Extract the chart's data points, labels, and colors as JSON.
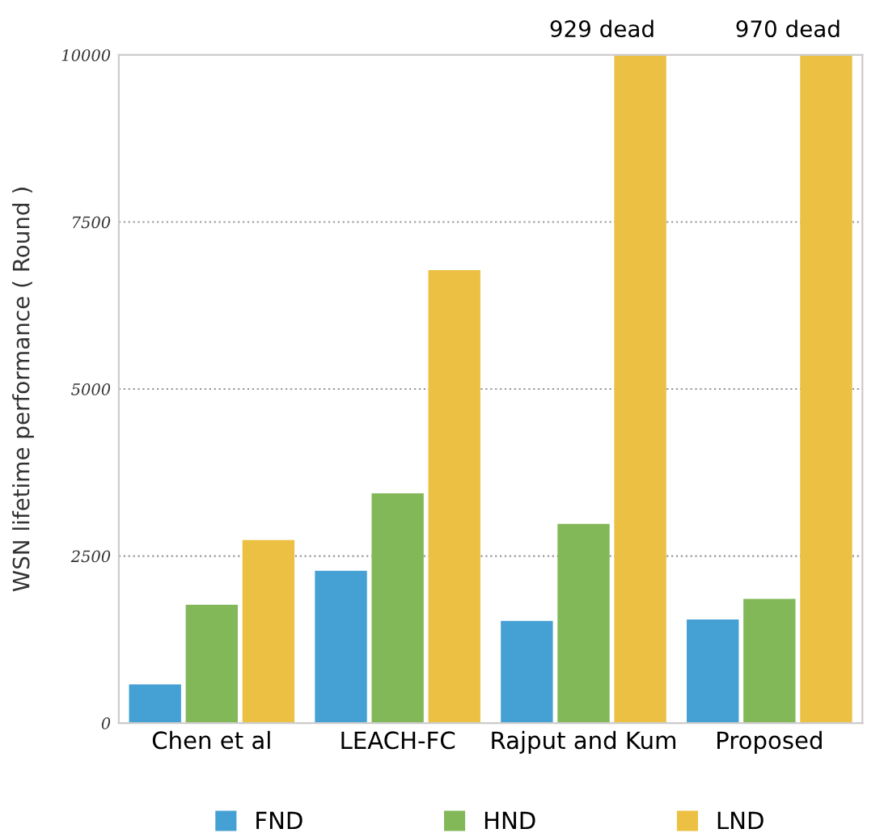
{
  "chart_data": {
    "type": "bar",
    "ylabel": "WSN lifetime performance ( Round )",
    "categories": [
      "Chen et al",
      "LEACH-FC",
      "Rajput and Kum",
      "Proposed"
    ],
    "series": [
      {
        "name": "FND",
        "color": "#45a0d4",
        "values": [
          580,
          2280,
          1530,
          1550
        ]
      },
      {
        "name": "HND",
        "color": "#82b858",
        "values": [
          1770,
          3440,
          2980,
          1860
        ]
      },
      {
        "name": "LND",
        "color": "#ecc043",
        "values": [
          2740,
          6780,
          10000,
          10000
        ]
      }
    ],
    "ylim": [
      0,
      10000
    ],
    "yticks": [
      0,
      2500,
      5000,
      7500,
      10000
    ],
    "grid": "y",
    "legend": "bottom",
    "annotations": [
      "929 dead",
      "970 dead"
    ]
  }
}
